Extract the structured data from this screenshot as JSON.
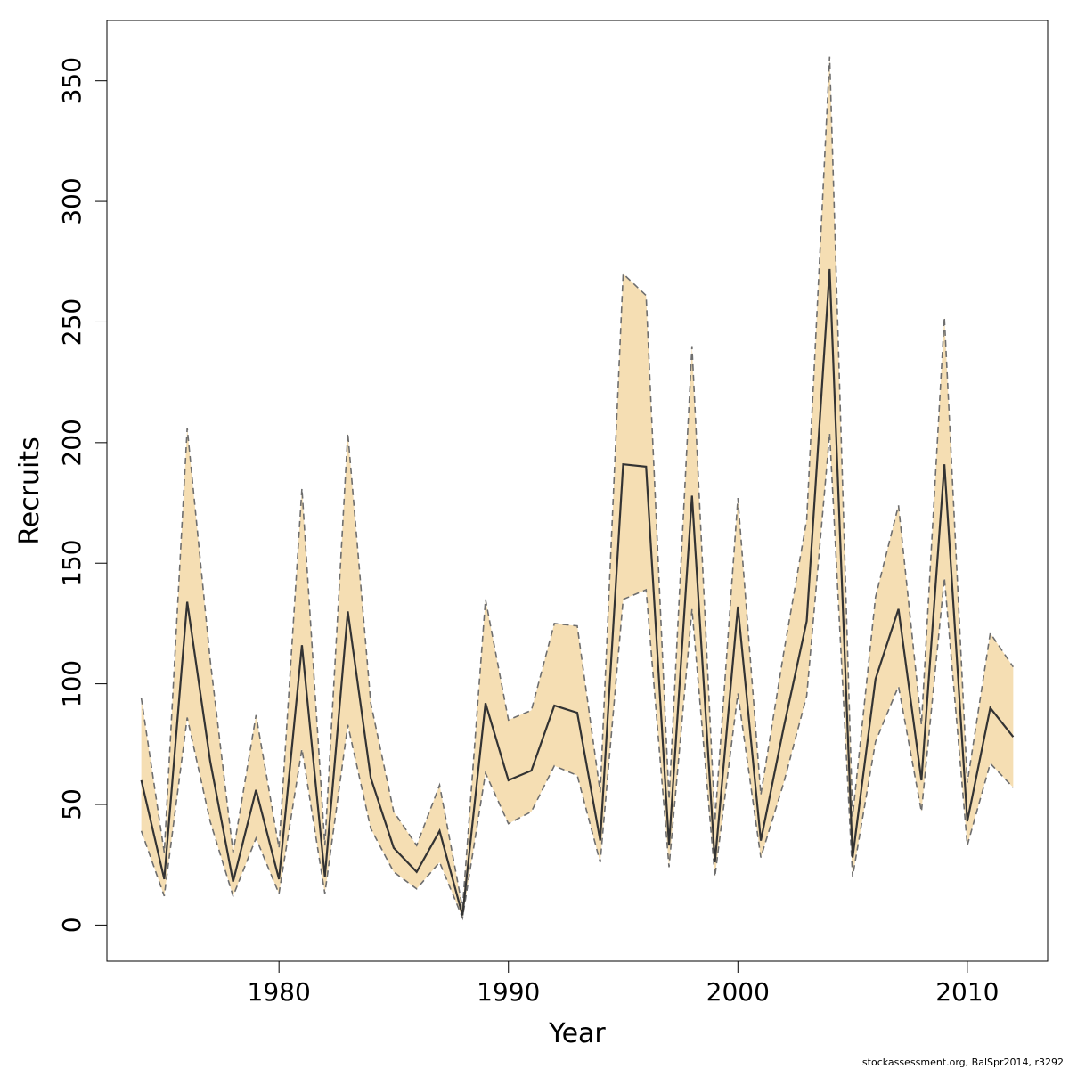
{
  "chart_data": {
    "type": "area",
    "title": "",
    "xlabel": "Year",
    "ylabel": "Recruits",
    "xlim": [
      1972.5,
      2013.5
    ],
    "ylim": [
      -15,
      375
    ],
    "xticks": [
      1980,
      1990,
      2000,
      2010
    ],
    "yticks": [
      0,
      50,
      100,
      150,
      200,
      250,
      300,
      350
    ],
    "grid": false,
    "legend": "none",
    "colors": {
      "band": "#f5deb3",
      "bound_line": "#6e6e6e",
      "estimate_line": "#333333"
    },
    "x": [
      1974,
      1975,
      1976,
      1977,
      1978,
      1979,
      1980,
      1981,
      1982,
      1983,
      1984,
      1985,
      1986,
      1987,
      1988,
      1989,
      1990,
      1991,
      1992,
      1993,
      1994,
      1995,
      1996,
      1997,
      1998,
      1999,
      2000,
      2001,
      2002,
      2003,
      2004,
      2005,
      2006,
      2007,
      2008,
      2009,
      2010,
      2011,
      2012
    ],
    "series": [
      {
        "role": "estimate",
        "values": [
          60,
          19,
          134,
          68,
          18,
          56,
          19,
          116,
          20,
          130,
          61,
          32,
          22,
          39,
          4,
          92,
          60,
          64,
          91,
          88,
          35,
          191,
          190,
          33,
          178,
          26,
          132,
          35,
          82,
          126,
          272,
          28,
          102,
          131,
          60,
          191,
          43,
          90,
          78
        ]
      },
      {
        "role": "upper",
        "values": [
          94,
          30,
          206,
          110,
          30,
          87,
          32,
          181,
          33,
          204,
          92,
          47,
          33,
          58,
          7,
          135,
          85,
          89,
          125,
          124,
          55,
          270,
          261,
          52,
          240,
          43,
          177,
          54,
          113,
          168,
          360,
          45,
          136,
          174,
          83,
          252,
          59,
          121,
          107
        ]
      },
      {
        "role": "lower",
        "values": [
          39,
          12,
          86,
          43,
          12,
          36,
          13,
          73,
          13,
          83,
          40,
          22,
          15,
          26,
          3,
          63,
          42,
          47,
          66,
          62,
          26,
          135,
          139,
          24,
          131,
          20,
          96,
          28,
          59,
          95,
          204,
          20,
          76,
          99,
          47,
          144,
          33,
          67,
          57
        ]
      }
    ]
  },
  "footer": "stockassessment.org, BalSpr2014, r3292"
}
